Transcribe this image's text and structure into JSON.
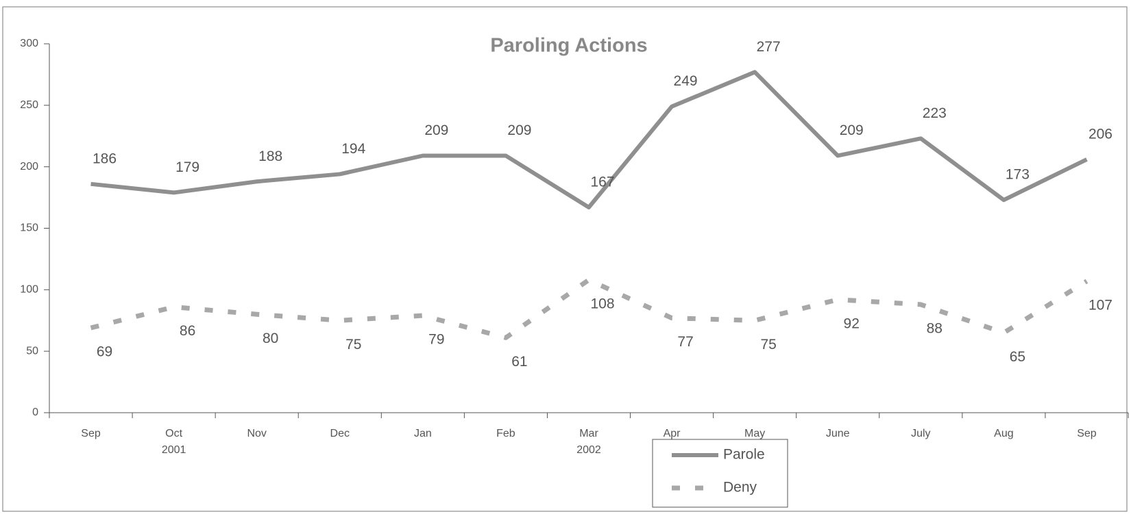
{
  "chart_data": {
    "type": "line",
    "title": "Paroling Actions",
    "categories": [
      [
        "Sep"
      ],
      [
        "Oct",
        "2001"
      ],
      [
        "Nov"
      ],
      [
        "Dec"
      ],
      [
        "Jan"
      ],
      [
        "Feb"
      ],
      [
        "Mar",
        "2002"
      ],
      [
        "Apr"
      ],
      [
        "May"
      ],
      [
        "June"
      ],
      [
        "July"
      ],
      [
        "Aug"
      ],
      [
        "Sep"
      ]
    ],
    "series": [
      {
        "name": "Parole",
        "color": "#8f8f8f",
        "style": "solid",
        "values": [
          186,
          179,
          188,
          194,
          209,
          209,
          167,
          249,
          277,
          209,
          223,
          173,
          206
        ]
      },
      {
        "name": "Deny",
        "color": "#a8a8a8",
        "style": "dashed",
        "values": [
          69,
          86,
          80,
          75,
          79,
          61,
          108,
          77,
          75,
          92,
          88,
          65,
          107
        ]
      }
    ],
    "ylim": [
      0,
      300
    ],
    "yticks": [
      0,
      50,
      100,
      150,
      200,
      250,
      300
    ],
    "grid": false
  }
}
